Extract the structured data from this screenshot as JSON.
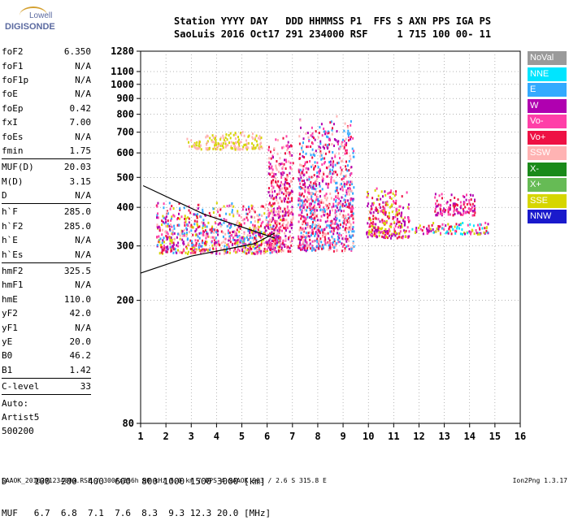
{
  "logo": {
    "line1": "Lowell",
    "line2": "DIGISONDE"
  },
  "header": {
    "labels": "Station YYYY DAY   DDD HHMMSS P1  FFS S AXN PPS IGA PS",
    "values": "SaoLuis 2016 Oct17 291 234000 RSF     1 715 100 00- 11"
  },
  "params": [
    {
      "name": "foF2",
      "value": "6.350"
    },
    {
      "name": "foF1",
      "value": "N/A"
    },
    {
      "name": "foF1p",
      "value": "N/A"
    },
    {
      "name": "foE",
      "value": "N/A"
    },
    {
      "name": "foEp",
      "value": "0.42"
    },
    {
      "name": "fxI",
      "value": "7.00"
    },
    {
      "name": "foEs",
      "value": "N/A"
    },
    {
      "name": "fmin",
      "value": "1.75"
    },
    {
      "sep": true
    },
    {
      "name": "MUF(D)",
      "value": "20.03"
    },
    {
      "name": "M(D)",
      "value": "3.15"
    },
    {
      "name": "D",
      "value": "N/A"
    },
    {
      "sep": true
    },
    {
      "name": "h`F",
      "value": "285.0"
    },
    {
      "name": "h`F2",
      "value": "285.0"
    },
    {
      "name": "h`E",
      "value": "N/A"
    },
    {
      "name": "h`Es",
      "value": "N/A"
    },
    {
      "sep": true
    },
    {
      "name": "hmF2",
      "value": "325.5"
    },
    {
      "name": "hmF1",
      "value": "N/A"
    },
    {
      "name": "hmE",
      "value": "110.0"
    },
    {
      "name": "yF2",
      "value": "42.0"
    },
    {
      "name": "yF1",
      "value": "N/A"
    },
    {
      "name": "yE",
      "value": "20.0"
    },
    {
      "name": "B0",
      "value": "46.2"
    },
    {
      "name": "B1",
      "value": "1.42"
    },
    {
      "sep": true
    },
    {
      "name": "C-level",
      "value": "33"
    },
    {
      "sep": true
    },
    {
      "name": "Auto:",
      "value": ""
    },
    {
      "name": "Artist5",
      "value": ""
    },
    {
      "name": "500200",
      "value": ""
    }
  ],
  "legend": [
    {
      "label": "NoVal",
      "color": "#9a9a9a"
    },
    {
      "label": "NNE",
      "color": "#00e5ff"
    },
    {
      "label": "E",
      "color": "#33aaff"
    },
    {
      "label": "W",
      "color": "#b000b0"
    },
    {
      "label": "Vo-",
      "color": "#ff3fa8"
    },
    {
      "label": "Vo+",
      "color": "#ee1144"
    },
    {
      "label": "SSW",
      "color": "#ffb3b3"
    },
    {
      "label": "X-",
      "color": "#1a8a1a"
    },
    {
      "label": "X+",
      "color": "#66bb55"
    },
    {
      "label": "SSE",
      "color": "#d6d600"
    },
    {
      "label": "NNW",
      "color": "#1a1acc"
    }
  ],
  "chart_data": {
    "type": "scatter",
    "xlim": [
      1,
      16
    ],
    "x_ticks": [
      1,
      2,
      3,
      4,
      5,
      6,
      7,
      8,
      9,
      10,
      11,
      12,
      13,
      14,
      15,
      16
    ],
    "y_scale": "log",
    "y_ticks": [
      80,
      200,
      300,
      400,
      500,
      600,
      700,
      800,
      900,
      1000,
      1100,
      1280
    ],
    "ylim": [
      80,
      1280
    ],
    "clusters": [
      {
        "x": [
          1.6,
          6.5
        ],
        "y": [
          285,
          420
        ],
        "color_mix": "Vo+,Vo-,W,SSW,SSE,E"
      },
      {
        "x": [
          2.8,
          5.8
        ],
        "y": [
          620,
          710
        ],
        "color_mix": "SSE,SSW"
      },
      {
        "x": [
          6.0,
          7.0
        ],
        "y": [
          290,
          700
        ],
        "color_mix": "Vo+,Vo-,W,SSW"
      },
      {
        "x": [
          7.2,
          9.4
        ],
        "y": [
          290,
          800
        ],
        "color_mix": "Vo+,Vo-,W,SSW,E"
      },
      {
        "x": [
          9.9,
          11.6
        ],
        "y": [
          320,
          470
        ],
        "color_mix": "Vo+,Vo-,W,SSE"
      },
      {
        "x": [
          11.7,
          14.7
        ],
        "y": [
          330,
          360
        ],
        "color_mix": "Vo+,Vo-,NNE,SSE,W"
      },
      {
        "x": [
          12.6,
          14.2
        ],
        "y": [
          380,
          450
        ],
        "color_mix": "W,Vo+,Vo-"
      }
    ],
    "traces": [
      {
        "name": "upper",
        "points": [
          [
            1.1,
            470
          ],
          [
            3.5,
            380
          ],
          [
            6.3,
            318
          ]
        ]
      },
      {
        "name": "lower",
        "points": [
          [
            1.0,
            245
          ],
          [
            3.0,
            278
          ],
          [
            5.5,
            305
          ],
          [
            6.3,
            330
          ]
        ]
      }
    ]
  },
  "d_table": {
    "d_row": "D     100  200  400  600  800 1000 1500 3000 [km]",
    "muf_row": "MUF   6.7  6.8  7.1  7.6  8.3  9.3 12.3 20.0 [MHz]"
  },
  "footer": {
    "left": "SAAOK_2016291234000.RSF / 300fx256h 50 kHz 5.0 km / DPS-4 SAAOK 903 / 2.6 S 315.8 E",
    "right": "Ion2Png 1.3.17"
  }
}
